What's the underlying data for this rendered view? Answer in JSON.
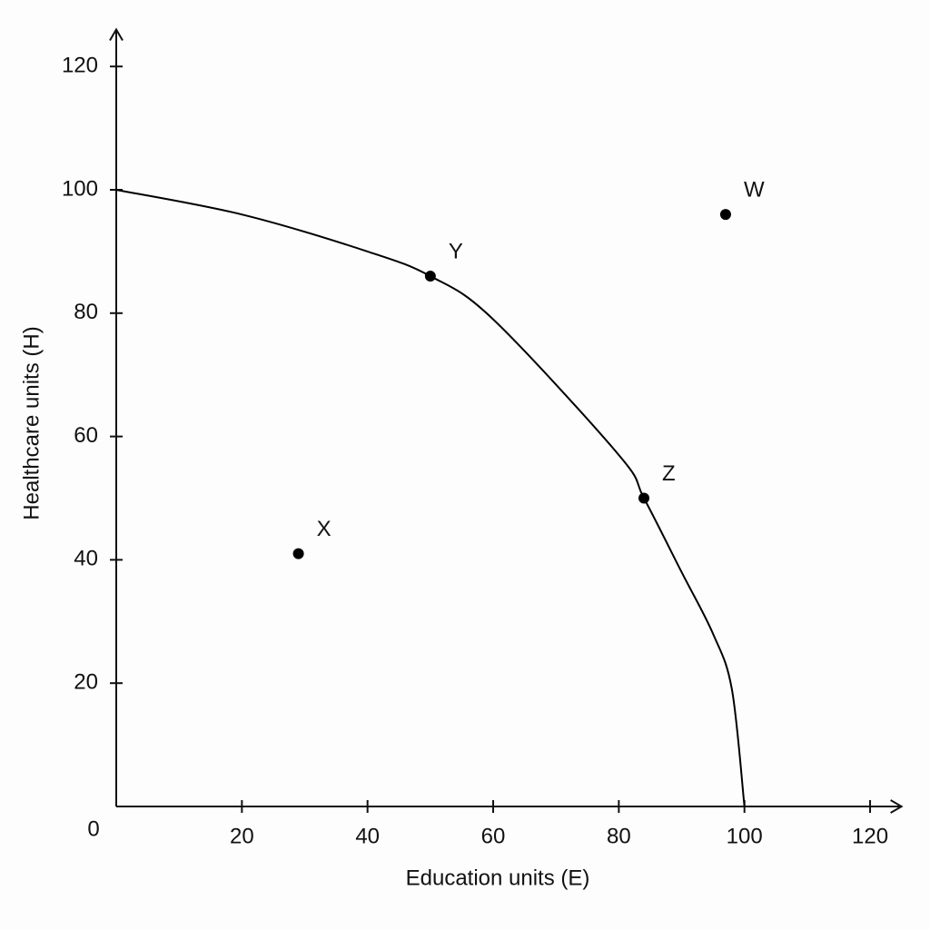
{
  "chart_data": {
    "type": "scatter",
    "xlabel": "Education units (E)",
    "ylabel": "Healthcare units (H)",
    "xlim": [
      0,
      125
    ],
    "ylim": [
      0,
      126
    ],
    "xticks": [
      0,
      20,
      40,
      60,
      80,
      100,
      120
    ],
    "yticks": [
      20,
      40,
      60,
      80,
      100,
      120
    ],
    "curve": {
      "color": "#000000",
      "x": [
        0,
        20,
        40,
        50,
        60,
        80,
        84,
        90,
        95,
        98,
        100
      ],
      "values": [
        100,
        96,
        90,
        86,
        79,
        57,
        50,
        38,
        28,
        19,
        0
      ]
    },
    "points": {
      "color": "#000000",
      "labels": [
        "X",
        "Y",
        "Z",
        "W"
      ],
      "x": [
        29,
        50,
        84,
        97
      ],
      "values": [
        41,
        86,
        50,
        96
      ]
    }
  }
}
